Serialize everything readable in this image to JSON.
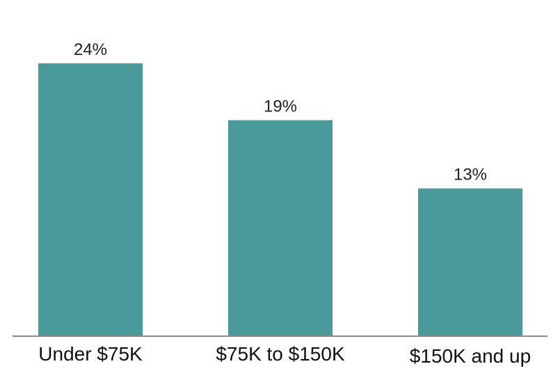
{
  "chart_data": {
    "type": "bar",
    "title": "",
    "xlabel": "",
    "ylabel": "",
    "categories": [
      "Under $75K",
      "$75K to $150K",
      "$150K and up"
    ],
    "values": [
      24,
      19,
      13
    ],
    "value_labels": [
      "24%",
      "19%",
      "13%"
    ],
    "unit": "%",
    "ylim": [
      0,
      24
    ],
    "grid": false,
    "legend": "none",
    "colors": {
      "bar": "#4b9a9a",
      "axis": "#8a8a8a",
      "text": "#222222"
    }
  }
}
